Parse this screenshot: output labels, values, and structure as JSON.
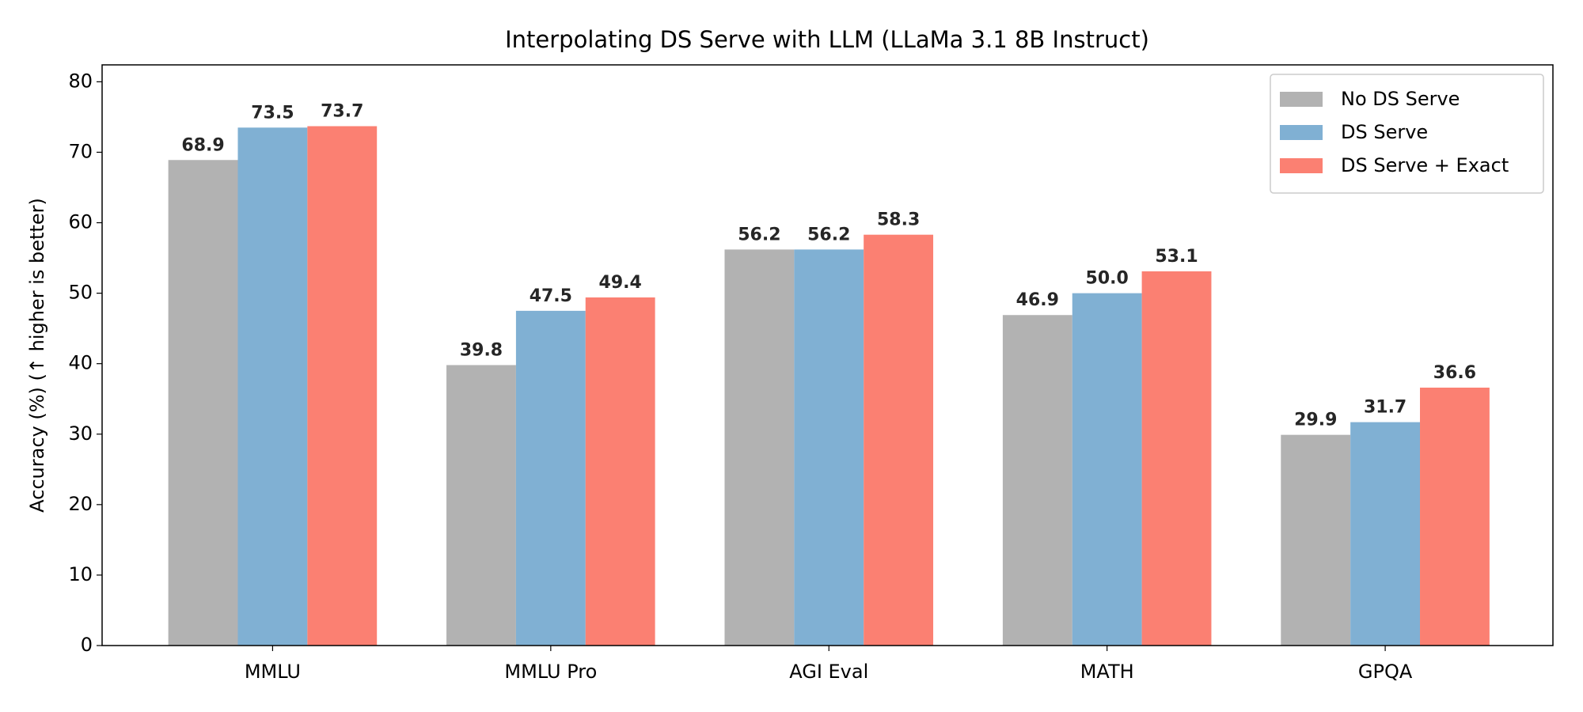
{
  "chart_data": {
    "type": "bar",
    "title": "Interpolating DS Serve with LLM (LLaMa 3.1 8B Instruct)",
    "y_label": "Accuracy (%) (↑ higher is better)",
    "categories": [
      "MMLU",
      "MMLU Pro",
      "AGI Eval",
      "MATH",
      "GPQA"
    ],
    "series": [
      {
        "name": "No DS Serve",
        "color": "#b2b2b2",
        "values": [
          68.9,
          39.8,
          56.2,
          46.9,
          29.9
        ],
        "value_labels": [
          "68.9",
          "39.8",
          "56.2",
          "46.9",
          "29.9"
        ]
      },
      {
        "name": "DS Serve",
        "color": "#80b0d3",
        "values": [
          73.5,
          47.5,
          56.2,
          50.0,
          31.7
        ],
        "value_labels": [
          "73.5",
          "47.5",
          "56.2",
          "50.0",
          "31.7"
        ]
      },
      {
        "name": "DS Serve + Exact",
        "color": "#fb8072",
        "values": [
          73.7,
          49.4,
          58.3,
          53.1,
          36.6
        ],
        "value_labels": [
          "73.7",
          "49.4",
          "58.3",
          "53.1",
          "36.6"
        ]
      }
    ],
    "ylim": [
      0,
      82.4
    ],
    "yticks": [
      0,
      10,
      20,
      30,
      40,
      50,
      60,
      70,
      80
    ],
    "grid": false,
    "legend": "upper right"
  }
}
